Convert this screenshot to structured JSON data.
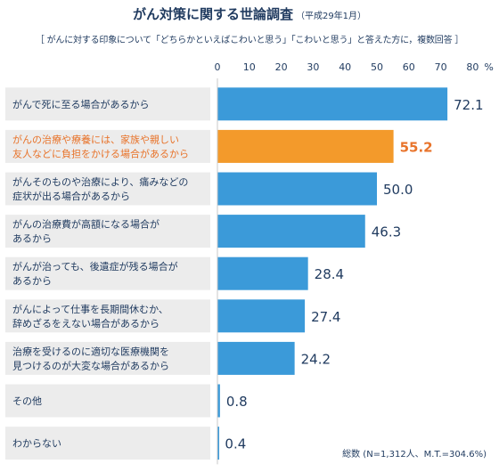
{
  "title": "がん対策に関する世論調査",
  "title_note": "（平成29年1月）",
  "subtitle": "［ がんに対する印象について「どちらかといえばこわいと思う」「こわいと思う」と答えた方に，複数回答 ］",
  "footnote": "総数 (N=1,312人、M.T.=304.6%)",
  "colors": {
    "bar": "#3b9ad9",
    "highlight": "#f39a2b",
    "text": "#1f3a5f",
    "highlight_text": "#e8732a"
  },
  "chart_data": {
    "type": "bar",
    "orientation": "horizontal",
    "xlim": [
      0,
      80
    ],
    "ticks": [
      "0",
      "10",
      "20",
      "30",
      "40",
      "50",
      "60",
      "70",
      "80"
    ],
    "unit": "%",
    "categories": [
      [
        "がんで死に至る場合があるから"
      ],
      [
        "がんの治療や療養には、家族や親しい",
        "友人などに負担をかける場合があるから"
      ],
      [
        "がんそのものや治療により、痛みなどの",
        "症状が出る場合があるから"
      ],
      [
        "がんの治療費が高額になる場合が",
        "あるから"
      ],
      [
        "がんが治っても、後遺症が残る場合が",
        "あるから"
      ],
      [
        "がんによって仕事を長期間休むか、",
        "辞めざるをえない場合があるから"
      ],
      [
        "治療を受けるのに適切な医療機関を",
        "見つけるのが大変な場合があるから"
      ],
      [
        "その他"
      ],
      [
        "わからない"
      ]
    ],
    "values": [
      72.1,
      55.2,
      50.0,
      46.3,
      28.4,
      27.4,
      24.2,
      0.8,
      0.4
    ],
    "value_labels": [
      "72.1",
      "55.2",
      "50.0",
      "46.3",
      "28.4",
      "27.4",
      "24.2",
      "0.8",
      "0.4"
    ],
    "highlight_index": 1
  }
}
